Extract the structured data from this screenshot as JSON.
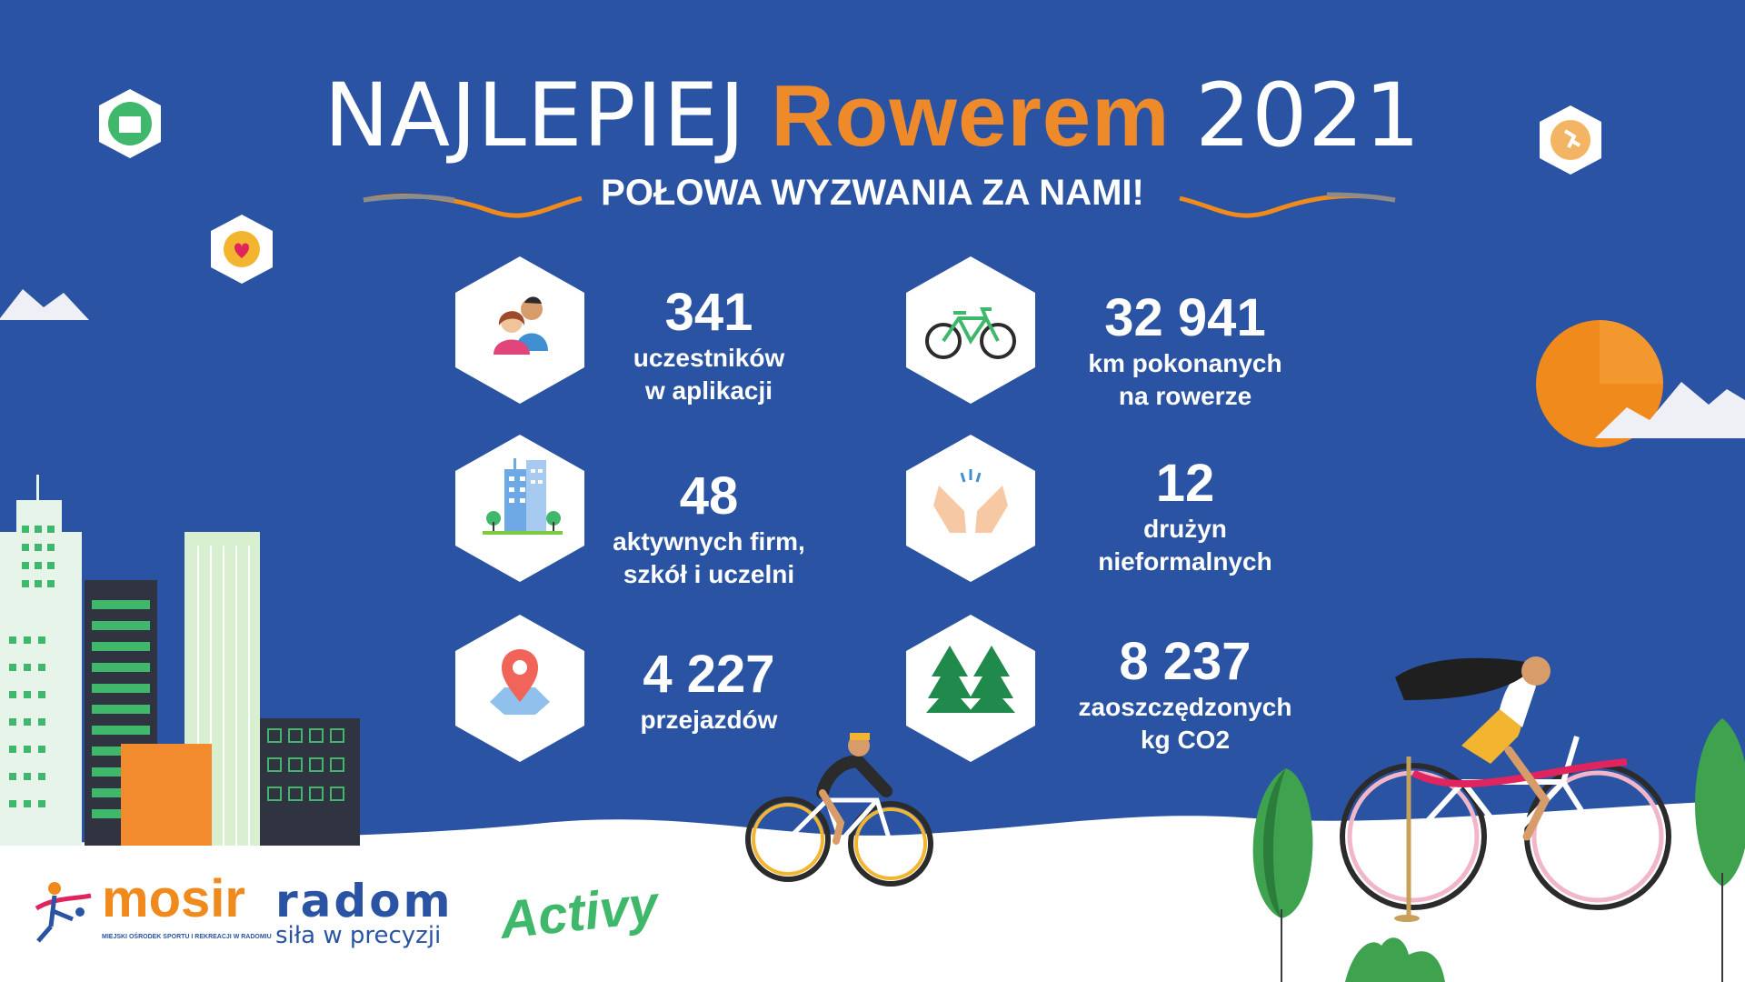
{
  "header": {
    "title_part1": "NAJLEPIEJ",
    "title_part2": "Rowerem",
    "title_part3": "2021",
    "subtitle": "POŁOWA WYZWANIA ZA NAMI!"
  },
  "stats": [
    {
      "value": "341",
      "line1": "uczestników",
      "line2": "w aplikacji",
      "icon": "people-icon"
    },
    {
      "value": "32 941",
      "line1": "km pokonanych",
      "line2": "na rowerze",
      "icon": "bicycle-icon"
    },
    {
      "value": "48",
      "line1": "aktywnych firm,",
      "line2": "szkół i uczelni",
      "icon": "office-building-icon"
    },
    {
      "value": "12",
      "line1": "drużyn",
      "line2": "nieformalnych",
      "icon": "high-five-icon"
    },
    {
      "value": "4 227",
      "line1": "przejazdów",
      "line2": "",
      "icon": "map-pin-icon"
    },
    {
      "value": "8 237",
      "line1": "zaoszczędzonych",
      "line2": "kg CO2",
      "icon": "trees-icon"
    }
  ],
  "logos": {
    "mosir": "mosir",
    "mosir_tagline": "MIEJSKI OŚRODEK SPORTU I REKREACJI W RADOMIU",
    "radom": "radom",
    "radom_tagline": "siła w precyzji",
    "activy": "Activy"
  },
  "colors": {
    "background": "#2a54a3",
    "accent": "#ef8a2a",
    "white": "#ffffff"
  }
}
